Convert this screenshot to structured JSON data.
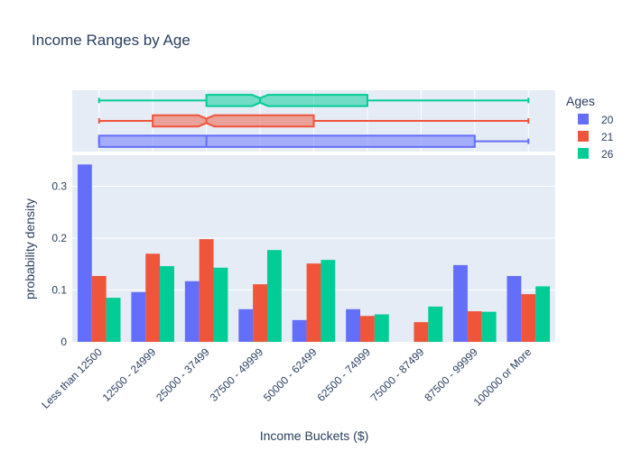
{
  "chart_data": {
    "type": "bar",
    "title": "Income Ranges by Age",
    "xlabel": "Income Buckets ($)",
    "ylabel": "probability density",
    "ylim": [
      0,
      0.36
    ],
    "yticks": [
      0,
      0.1,
      0.2,
      0.3
    ],
    "ytick_labels": [
      "0",
      "0.1",
      "0.2",
      "0.3"
    ],
    "grid": true,
    "legend": {
      "title": "Ages",
      "placement": "top-right"
    },
    "categories": [
      "Less than 12500",
      "12500 - 24999",
      "25000 - 37499",
      "37500 - 49999",
      "50000 - 62499",
      "62500 - 74999",
      "75000 - 87499",
      "87500 - 99999",
      "100000 or More"
    ],
    "series": [
      {
        "name": "20",
        "color": "#636efa",
        "values": [
          0.342,
          0.096,
          0.117,
          0.063,
          0.042,
          0.063,
          0.0,
          0.148,
          0.127
        ]
      },
      {
        "name": "21",
        "color": "#ef553b",
        "values": [
          0.127,
          0.17,
          0.198,
          0.111,
          0.151,
          0.05,
          0.038,
          0.059,
          0.092
        ]
      },
      {
        "name": "26",
        "color": "#00cc96",
        "values": [
          0.085,
          0.146,
          0.143,
          0.177,
          0.158,
          0.053,
          0.068,
          0.058,
          0.107
        ]
      }
    ],
    "marginal_box": {
      "type": "box",
      "notched": true,
      "axis": "category-index",
      "boxes": [
        {
          "name": "20",
          "min": 0,
          "q1": 0,
          "median": 2,
          "q3": 7,
          "max": 8,
          "notch_low": 2,
          "notch_high": 2
        },
        {
          "name": "21",
          "min": 0,
          "q1": 1,
          "median": 2,
          "q3": 4,
          "max": 8,
          "notch_low": 1.85,
          "notch_high": 2.15
        },
        {
          "name": "26",
          "min": 0,
          "q1": 2,
          "median": 3,
          "q3": 5,
          "max": 8,
          "notch_low": 2.85,
          "notch_high": 3.15
        }
      ]
    }
  }
}
